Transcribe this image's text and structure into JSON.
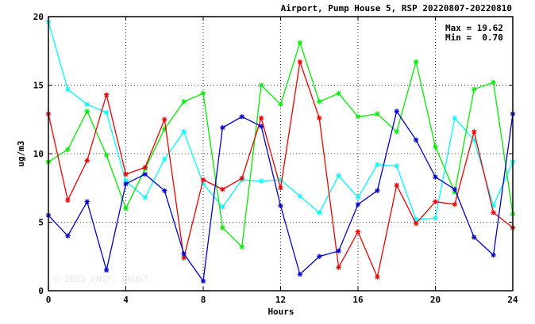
{
  "chart_data": {
    "type": "line",
    "title": "Airport, Pump House 5, RSP 20220807-20220810",
    "xlabel": "Hours",
    "ylabel": "ug/m3",
    "xlim": [
      0,
      24
    ],
    "ylim": [
      0,
      20
    ],
    "xticks": [
      0,
      4,
      8,
      12,
      16,
      20,
      24
    ],
    "yticks": [
      0,
      5,
      10,
      15,
      20
    ],
    "grid": true,
    "annotations": {
      "max_label": "Max = 19.62",
      "min_label": "Min =  0.70"
    },
    "watermark": "© 2025  ENVF, HKUST",
    "x": [
      0,
      1,
      2,
      3,
      4,
      5,
      6,
      7,
      8,
      9,
      10,
      11,
      12,
      13,
      14,
      15,
      16,
      17,
      18,
      19,
      20,
      21,
      22,
      23,
      24
    ],
    "series": [
      {
        "color": "#00ffff",
        "values": [
          19.62,
          14.7,
          13.6,
          13.0,
          8.0,
          6.8,
          9.6,
          11.6,
          7.8,
          6.1,
          8.1,
          8.0,
          8.1,
          6.9,
          5.7,
          8.4,
          6.8,
          9.2,
          9.1,
          5.2,
          5.3,
          12.6,
          11.0,
          6.2,
          9.4
        ]
      },
      {
        "color": "#00ee00",
        "values": [
          9.4,
          10.3,
          13.1,
          9.9,
          6.0,
          8.9,
          11.8,
          13.8,
          14.4,
          4.6,
          3.2,
          15.0,
          13.6,
          18.1,
          13.8,
          14.4,
          12.7,
          12.9,
          11.6,
          16.7,
          10.5,
          7.2,
          14.7,
          15.2,
          5.6
        ]
      },
      {
        "color": "#ee0000",
        "values": [
          12.9,
          6.6,
          9.5,
          14.3,
          8.5,
          9.0,
          12.5,
          2.4,
          8.1,
          7.4,
          8.2,
          12.6,
          7.5,
          16.7,
          12.6,
          1.7,
          4.3,
          1.0,
          7.7,
          4.9,
          6.5,
          6.3,
          11.6,
          5.7,
          4.6
        ]
      },
      {
        "color": "#0000cc",
        "values": [
          5.5,
          4.0,
          6.5,
          1.5,
          7.8,
          8.5,
          7.3,
          2.7,
          0.7,
          11.9,
          12.7,
          12.0,
          6.2,
          1.2,
          2.5,
          2.9,
          6.3,
          7.3,
          13.1,
          11.0,
          8.3,
          7.4,
          3.9,
          2.6,
          12.9
        ]
      }
    ]
  }
}
